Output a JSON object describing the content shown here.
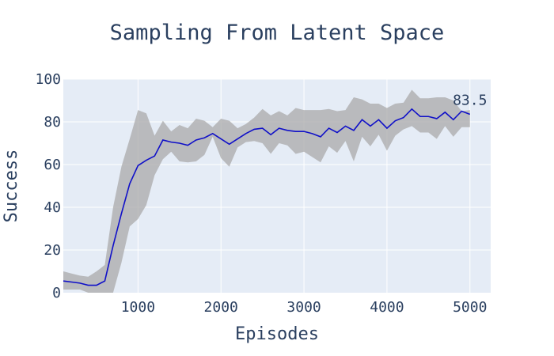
{
  "chart_data": {
    "type": "line",
    "title": "Sampling From Latent Space",
    "xlabel": "Episodes",
    "ylabel": "Success",
    "xlim": [
      100,
      5250
    ],
    "ylim": [
      0,
      100
    ],
    "x_ticks": [
      1000,
      2000,
      3000,
      4000,
      5000
    ],
    "y_ticks": [
      0,
      20,
      40,
      60,
      80,
      100
    ],
    "grid": true,
    "legend": "none",
    "colors": {
      "plot_bg": "#e5ecf6",
      "grid": "#ffffff",
      "line": "#1010c8",
      "band": "#a9a9a9",
      "text": "#2a3f5f"
    },
    "end_label": "83.5",
    "series": [
      {
        "x": [
          100,
          200,
          300,
          400,
          500,
          600,
          700,
          800,
          900,
          1000,
          1100,
          1200,
          1300,
          1400,
          1500,
          1600,
          1700,
          1800,
          1900,
          2000,
          2100,
          2200,
          2300,
          2400,
          2500,
          2600,
          2700,
          2800,
          2900,
          3000,
          3100,
          3200,
          3300,
          3400,
          3500,
          3600,
          3700,
          3800,
          3900,
          4000,
          4100,
          4200,
          4300,
          4400,
          4500,
          4600,
          4700,
          4800,
          4900,
          5000
        ],
        "y": [
          5.5,
          5,
          4.5,
          3.5,
          3.5,
          5.5,
          22,
          37,
          51,
          59.5,
          62,
          64,
          71.5,
          70.5,
          70,
          69,
          71.5,
          72.5,
          74.5,
          72,
          69.5,
          72,
          74.5,
          76.5,
          77,
          74,
          77,
          76,
          75.5,
          75.5,
          74.5,
          73,
          77,
          75,
          78,
          76,
          81,
          78,
          81,
          77,
          80.5,
          82,
          86,
          82.5,
          82.5,
          81.5,
          84.5,
          81,
          85,
          83.5
        ],
        "upper": [
          10,
          9,
          8,
          7.5,
          10,
          13,
          40,
          59,
          72,
          85.5,
          84,
          73.5,
          80.5,
          75.5,
          78.5,
          77,
          81.5,
          80.5,
          77.5,
          81.5,
          80.5,
          77,
          79,
          82,
          86,
          83,
          85,
          83,
          86.5,
          85.5,
          85.5,
          85.5,
          86,
          85,
          85.5,
          91.5,
          90.5,
          88.5,
          88.5,
          86.5,
          88.5,
          89,
          95,
          91,
          91,
          91.5,
          91.5,
          90,
          85,
          85.5
        ],
        "lower": [
          1.5,
          1.5,
          1.5,
          0,
          0,
          0,
          0,
          14,
          31,
          34.5,
          41,
          55,
          62.5,
          66,
          61.5,
          61,
          61.5,
          64.5,
          73,
          63,
          59,
          68,
          70.5,
          71,
          70,
          65,
          70,
          69,
          65,
          66,
          63.5,
          61,
          68.5,
          65.5,
          71,
          61.5,
          73,
          68.5,
          74,
          66.5,
          73.5,
          76.5,
          78,
          75,
          75,
          72,
          78,
          73,
          77.5,
          77.5
        ]
      }
    ]
  }
}
